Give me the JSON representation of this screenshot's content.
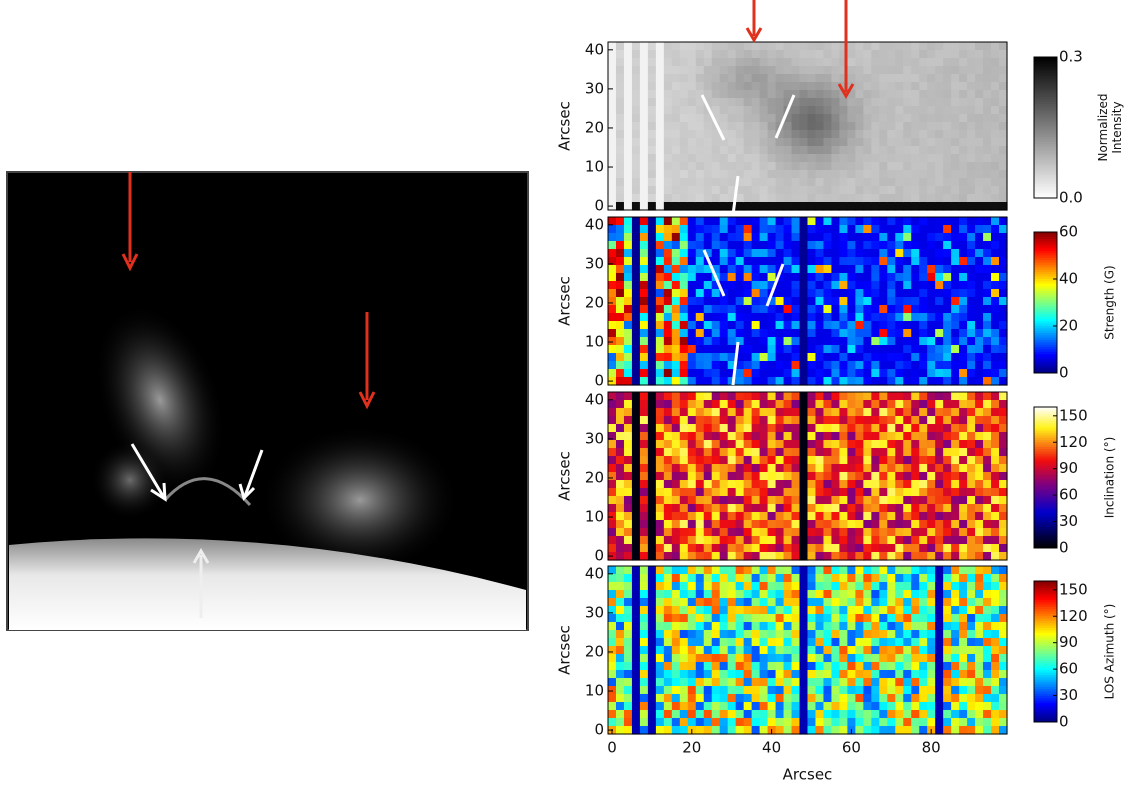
{
  "chart_data": [
    {
      "type": "heatmap",
      "ylabel": "Arcsec",
      "xlim": [
        -1,
        99
      ],
      "ylim": [
        -1,
        42
      ],
      "yticks": [
        0,
        10,
        20,
        30,
        40
      ],
      "colormap": "gray_r",
      "colorbar": {
        "label": "Normalized\nIntensity",
        "lim": [
          0,
          0.3
        ],
        "ticks": [
          {
            "value": 0,
            "label": "0.0"
          },
          {
            "value": 0.3,
            "label": "0.3"
          }
        ]
      }
    },
    {
      "type": "heatmap",
      "ylabel": "Arcsec",
      "xlim": [
        -1,
        99
      ],
      "ylim": [
        -1,
        42
      ],
      "yticks": [
        0,
        10,
        20,
        30,
        40
      ],
      "colormap": "jet",
      "colorbar": {
        "label": "Strength (G)",
        "lim": [
          0,
          60
        ],
        "ticks": [
          0,
          20,
          40,
          60
        ]
      }
    },
    {
      "type": "heatmap",
      "ylabel": "Arcsec",
      "xlim": [
        -1,
        99
      ],
      "ylim": [
        -1,
        42
      ],
      "yticks": [
        0,
        10,
        20,
        30,
        40
      ],
      "colormap": "hot",
      "colorbar": {
        "label": "Inclination (°)",
        "lim": [
          0,
          160
        ],
        "ticks": [
          0,
          30,
          60,
          90,
          120,
          150
        ]
      }
    },
    {
      "type": "heatmap",
      "ylabel": "Arcsec",
      "xlim": [
        -1,
        99
      ],
      "ylim": [
        -1,
        42
      ],
      "yticks": [
        0,
        10,
        20,
        30,
        40
      ],
      "colormap": "jet",
      "colorbar": {
        "label": "LOS Azimuth (°)",
        "lim": [
          0,
          160
        ],
        "ticks": [
          0,
          30,
          60,
          90,
          120,
          150
        ]
      },
      "xlabel": "Arcsec",
      "xticks": [
        0,
        20,
        40,
        60,
        80
      ]
    }
  ]
}
